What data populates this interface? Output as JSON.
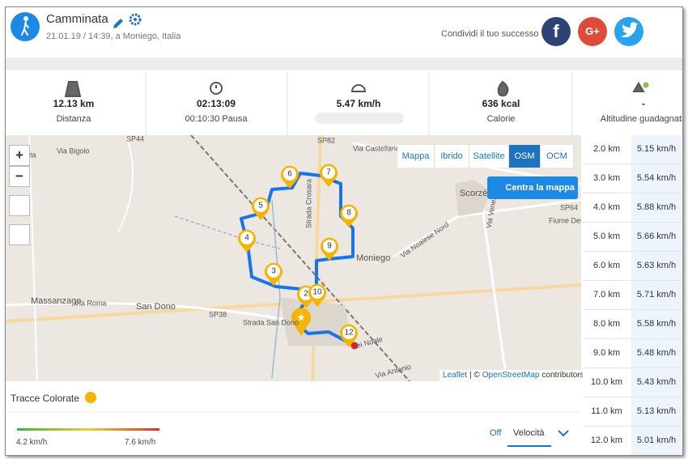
{
  "header": {
    "title": "Camminata",
    "subtitle": "21.01.19 / 14:39, a Moniego, Italia",
    "share_label": "Condividi il tuo successo",
    "share_buttons": [
      "f",
      "G+"
    ]
  },
  "stats": [
    {
      "value": "12.13 km",
      "label": "Distanza"
    },
    {
      "value": "02:13:09",
      "label": "00:10:30 Pausa"
    },
    {
      "value": "5.47 km/h"
    },
    {
      "value": "636 kcal",
      "label": "Calorie"
    },
    {
      "value": "-",
      "label": "Altitudine guadagnata"
    }
  ],
  "map": {
    "layers": [
      "Mappa",
      "Ibrido",
      "Satellite",
      "OSM",
      "OCM"
    ],
    "active_layer": "OSM",
    "center_button": "Centra la mappa",
    "zoom": [
      "+",
      "−"
    ],
    "places": [
      "alta",
      "Via Bigolo",
      "SP44",
      "SP82",
      "Via Castellana",
      "Scorzè",
      "SP64",
      "Fiume Dese",
      "Via Noalese Nord",
      "Via Venezia",
      "Moniego",
      "Massanzago",
      "Via Roma",
      "San Dono",
      "SP38",
      "Strada San Dono",
      "Strada Crosara",
      "Via Antonio",
      "dei Noale"
    ],
    "markers": [
      2,
      3,
      4,
      5,
      6,
      7,
      8,
      9,
      10,
      12
    ],
    "attribution": [
      "Leaflet",
      "| ©",
      "OpenStreetMap",
      "contributors"
    ]
  },
  "splits": [
    [
      "2.0 km",
      "5.15 km/h"
    ],
    [
      "3.0 km",
      "5.54 km/h"
    ],
    [
      "4.0 km",
      "5.88 km/h"
    ],
    [
      "5.0 km",
      "5.66 km/h"
    ],
    [
      "6.0 km",
      "5.63 km/h"
    ],
    [
      "7.0 km",
      "5.71 km/h"
    ],
    [
      "8.0 km",
      "5.58 km/h"
    ],
    [
      "9.0 km",
      "5.48 km/h"
    ],
    [
      "10.0 km",
      "5.43 km/h"
    ],
    [
      "11.0 km",
      "5.13 km/h"
    ],
    [
      "12.0 km",
      "5.01 km/h"
    ]
  ],
  "colored_tracks": {
    "title": "Tracce Colorate",
    "min": "4.2 km/h",
    "max": "7.6 km/h",
    "toggle": "Off",
    "metric": "Velocità"
  }
}
